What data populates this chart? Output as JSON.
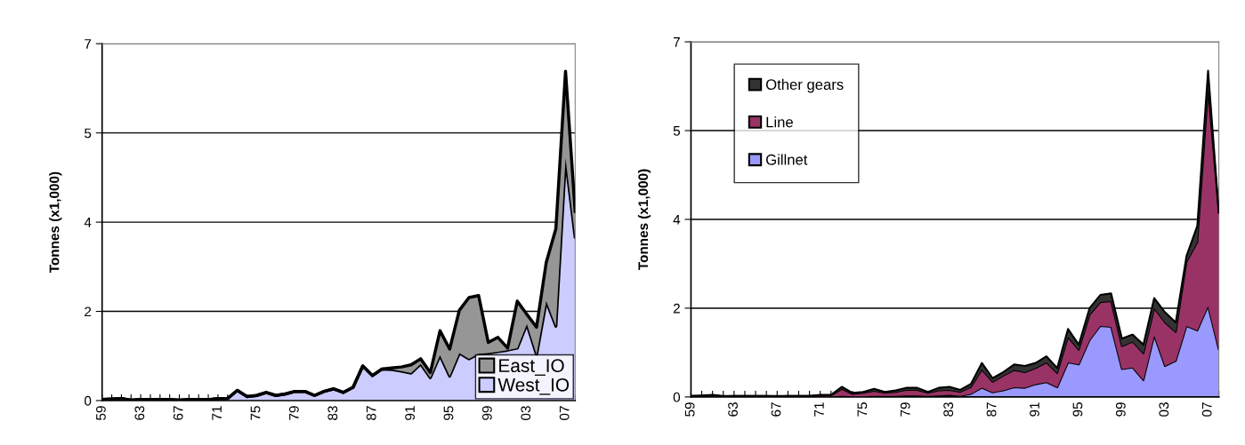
{
  "chart_data": [
    {
      "type": "area",
      "stacked": true,
      "ylabel": "Tonnes (x1,000)",
      "categories": [
        "59",
        null,
        null,
        null,
        "63",
        null,
        null,
        null,
        "67",
        null,
        null,
        null,
        "71",
        null,
        null,
        null,
        "75",
        null,
        null,
        null,
        "79",
        null,
        null,
        null,
        "83",
        null,
        null,
        null,
        "87",
        null,
        null,
        null,
        "91",
        null,
        null,
        null,
        "95",
        null,
        null,
        null,
        "99",
        null,
        null,
        null,
        "03",
        null,
        null,
        null,
        "07",
        null
      ],
      "series": [
        {
          "name": "West_IO",
          "color": "#ccccff",
          "values": [
            0.02,
            0.03,
            0.04,
            0.01,
            0.02,
            0.02,
            0.02,
            0.02,
            0.01,
            0.02,
            0.02,
            0.02,
            0.04,
            0.04,
            0.2,
            0.08,
            0.1,
            0.16,
            0.1,
            0.13,
            0.18,
            0.18,
            0.1,
            0.18,
            0.23,
            0.16,
            0.26,
            0.68,
            0.49,
            0.62,
            0.61,
            0.58,
            0.54,
            0.72,
            0.45,
            0.89,
            0.48,
            0.93,
            0.82,
            0.92,
            0.93,
            0.96,
            0.99,
            1.03,
            1.5,
            0.9,
            1.95,
            1.46,
            4.75,
            3.2
          ]
        },
        {
          "name": "East_IO",
          "color": "#969696",
          "values": [
            0,
            0,
            0,
            0,
            0,
            0,
            0,
            0,
            0,
            0,
            0,
            0,
            0,
            0,
            0,
            0,
            0,
            0,
            0,
            0,
            0,
            0,
            0,
            0,
            0,
            0,
            0,
            0,
            0,
            0,
            0.03,
            0.08,
            0.16,
            0.1,
            0.1,
            0.48,
            0.53,
            0.84,
            1.2,
            1.14,
            0.21,
            0.28,
            0.04,
            0.92,
            0.19,
            0.54,
            0.76,
            1.91,
            1.71,
            0.5
          ]
        }
      ],
      "ylim": [
        0,
        7
      ],
      "yticks": [
        0,
        {
          "value": 1.75,
          "label": "2"
        },
        {
          "value": 3.5,
          "label": "4"
        },
        {
          "value": 5.25,
          "label": "5"
        },
        7
      ],
      "grid": "y",
      "legend": "bottom right"
    },
    {
      "type": "area",
      "stacked": true,
      "ylabel": "Tonnes (x1,000)",
      "categories": [
        "59",
        null,
        null,
        null,
        "63",
        null,
        null,
        null,
        "67",
        null,
        null,
        null,
        "71",
        null,
        null,
        null,
        "75",
        null,
        null,
        null,
        "79",
        null,
        null,
        null,
        "83",
        null,
        null,
        null,
        "87",
        null,
        null,
        null,
        "91",
        null,
        null,
        null,
        "95",
        null,
        null,
        null,
        "99",
        null,
        null,
        null,
        "03",
        null,
        null,
        null,
        "07",
        null
      ],
      "series": [
        {
          "name": "Gillnet",
          "color": "#9999ff",
          "values": [
            0.01,
            0.01,
            0.01,
            0.01,
            0.01,
            0.01,
            0.01,
            0.01,
            0.01,
            0.01,
            0.01,
            0.01,
            0.01,
            0.01,
            0.02,
            0.01,
            0.01,
            0.02,
            0.02,
            0.02,
            0.03,
            0.03,
            0.02,
            0.03,
            0.04,
            0.02,
            0.06,
            0.18,
            0.09,
            0.13,
            0.19,
            0.18,
            0.25,
            0.29,
            0.19,
            0.68,
            0.64,
            1.12,
            1.4,
            1.38,
            0.55,
            0.58,
            0.33,
            1.21,
            0.61,
            0.71,
            1.4,
            1.31,
            1.79,
            0.93
          ]
        },
        {
          "name": "Line",
          "color": "#993366",
          "values": [
            0.01,
            0.01,
            0.02,
            0,
            0.01,
            0.01,
            0.01,
            0.01,
            0,
            0.01,
            0.01,
            0.01,
            0.02,
            0.02,
            0.14,
            0.05,
            0.07,
            0.1,
            0.06,
            0.08,
            0.11,
            0.11,
            0.06,
            0.1,
            0.1,
            0.08,
            0.14,
            0.36,
            0.21,
            0.29,
            0.34,
            0.31,
            0.32,
            0.39,
            0.28,
            0.5,
            0.29,
            0.5,
            0.47,
            0.51,
            0.45,
            0.51,
            0.53,
            0.54,
            0.86,
            0.57,
            1.27,
            1.74,
            4.29,
            2.7
          ]
        },
        {
          "name": "Other gears",
          "color": "#333333",
          "values": [
            0,
            0.01,
            0.01,
            0.01,
            0,
            0,
            0,
            0,
            0.01,
            0,
            0,
            0,
            0.01,
            0.01,
            0.04,
            0.02,
            0.02,
            0.04,
            0.02,
            0.03,
            0.04,
            0.04,
            0.02,
            0.05,
            0.06,
            0.04,
            0.06,
            0.13,
            0.07,
            0.07,
            0.11,
            0.12,
            0.1,
            0.12,
            0.1,
            0.16,
            0.1,
            0.13,
            0.14,
            0.15,
            0.15,
            0.14,
            0.17,
            0.2,
            0.2,
            0.19,
            0.11,
            0.32,
            0.35,
            0
          ]
        }
      ],
      "ylim": [
        0,
        7
      ],
      "yticks": [
        0,
        {
          "value": 1.75,
          "label": "2"
        },
        {
          "value": 3.5,
          "label": "4"
        },
        {
          "value": 5.25,
          "label": "5"
        },
        7
      ],
      "grid": "y",
      "legend": "top left"
    }
  ]
}
